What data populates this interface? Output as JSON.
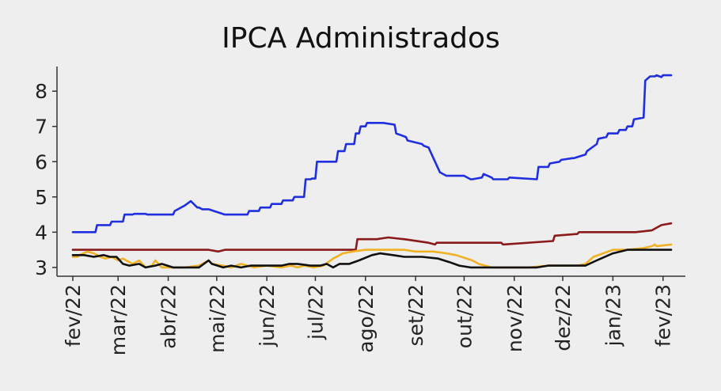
{
  "chart_data": {
    "type": "line",
    "title": "IPCA Administrados",
    "xlabel": "",
    "ylabel": "",
    "ylim": [
      2.75,
      8.7
    ],
    "yticks": [
      3,
      4,
      5,
      6,
      7,
      8
    ],
    "x_domain": [
      "2022-02-01",
      "2023-02-07"
    ],
    "x_ticks": [
      {
        "label": "fev/22",
        "date": "2022-02-01"
      },
      {
        "label": "mar/22",
        "date": "2022-03-01"
      },
      {
        "label": "abr/22",
        "date": "2022-04-01"
      },
      {
        "label": "mai/22",
        "date": "2022-05-01"
      },
      {
        "label": "jun/22",
        "date": "2022-06-01"
      },
      {
        "label": "jul/22",
        "date": "2022-07-01"
      },
      {
        "label": "ago/22",
        "date": "2022-08-01"
      },
      {
        "label": "set/22",
        "date": "2022-09-01"
      },
      {
        "label": "out/22",
        "date": "2022-10-01"
      },
      {
        "label": "nov/22",
        "date": "2022-11-01"
      },
      {
        "label": "dez/22",
        "date": "2022-12-01"
      },
      {
        "label": "jan/23",
        "date": "2023-01-01"
      },
      {
        "label": "fev/23",
        "date": "2023-02-01"
      }
    ],
    "legend": "none",
    "grid": false,
    "series": [
      {
        "color": "#1f2fe0",
        "x": [
          "2022-02-01",
          "2022-02-15",
          "2022-02-16",
          "2022-02-24",
          "2022-02-25",
          "2022-03-04",
          "2022-03-05",
          "2022-03-10",
          "2022-03-11",
          "2022-03-18",
          "2022-03-19",
          "2022-04-04",
          "2022-04-05",
          "2022-04-11",
          "2022-04-15",
          "2022-04-19",
          "2022-04-20",
          "2022-04-22",
          "2022-04-26",
          "2022-05-06",
          "2022-05-07",
          "2022-05-20",
          "2022-05-21",
          "2022-05-27",
          "2022-05-28",
          "2022-06-03",
          "2022-06-04",
          "2022-06-10",
          "2022-06-11",
          "2022-06-17",
          "2022-06-18",
          "2022-06-24",
          "2022-06-25",
          "2022-06-28",
          "2022-06-29",
          "2022-07-01",
          "2022-07-02",
          "2022-07-14",
          "2022-07-15",
          "2022-07-19",
          "2022-07-20",
          "2022-07-25",
          "2022-07-26",
          "2022-07-28",
          "2022-07-29",
          "2022-08-01",
          "2022-08-02",
          "2022-08-12",
          "2022-08-19",
          "2022-08-20",
          "2022-08-26",
          "2022-08-27",
          "2022-09-05",
          "2022-09-06",
          "2022-09-09",
          "2022-09-13",
          "2022-09-16",
          "2022-09-20",
          "2022-09-21",
          "2022-09-30",
          "2022-10-01",
          "2022-10-05",
          "2022-10-06",
          "2022-10-12",
          "2022-10-13",
          "2022-10-18",
          "2022-10-19",
          "2022-10-28",
          "2022-10-29",
          "2022-11-15",
          "2022-11-16",
          "2022-11-22",
          "2022-11-23",
          "2022-11-29",
          "2022-11-30",
          "2022-12-07",
          "2022-12-08",
          "2022-12-15",
          "2022-12-16",
          "2022-12-22",
          "2022-12-23",
          "2022-12-28",
          "2022-12-29",
          "2023-01-04",
          "2023-01-05",
          "2023-01-09",
          "2023-01-10",
          "2023-01-13",
          "2023-01-14",
          "2023-01-20",
          "2023-01-21",
          "2023-01-24",
          "2023-01-25",
          "2023-01-27",
          "2023-01-28",
          "2023-01-31",
          "2023-02-01",
          "2023-02-06"
        ],
        "values": [
          4.0,
          4.0,
          4.2,
          4.2,
          4.3,
          4.3,
          4.5,
          4.5,
          4.52,
          4.52,
          4.5,
          4.5,
          4.6,
          4.75,
          4.88,
          4.7,
          4.7,
          4.65,
          4.65,
          4.5,
          4.5,
          4.5,
          4.6,
          4.6,
          4.7,
          4.7,
          4.8,
          4.8,
          4.9,
          4.9,
          5.0,
          5.0,
          5.5,
          5.5,
          5.52,
          5.52,
          6.0,
          6.0,
          6.3,
          6.3,
          6.5,
          6.5,
          6.8,
          6.8,
          7.0,
          7.0,
          7.1,
          7.1,
          7.05,
          6.8,
          6.7,
          6.6,
          6.5,
          6.45,
          6.4,
          6.0,
          5.7,
          5.6,
          5.6,
          5.6,
          5.6,
          5.5,
          5.5,
          5.55,
          5.65,
          5.55,
          5.5,
          5.5,
          5.55,
          5.5,
          5.85,
          5.85,
          5.95,
          6.0,
          6.05,
          6.1,
          6.1,
          6.2,
          6.3,
          6.5,
          6.65,
          6.7,
          6.8,
          6.8,
          6.9,
          6.9,
          7.0,
          7.0,
          7.2,
          7.25,
          8.3,
          8.42,
          8.42,
          8.42,
          8.45,
          8.4,
          8.45,
          8.45
        ]
      },
      {
        "color": "#8b1a1a",
        "x": [
          "2022-02-01",
          "2022-04-26",
          "2022-05-02",
          "2022-05-06",
          "2022-07-26",
          "2022-07-27",
          "2022-08-08",
          "2022-08-15",
          "2022-08-25",
          "2022-09-09",
          "2022-09-13",
          "2022-09-14",
          "2022-10-01",
          "2022-10-24",
          "2022-10-25",
          "2022-11-25",
          "2022-11-26",
          "2022-12-10",
          "2022-12-11",
          "2023-01-15",
          "2023-01-25",
          "2023-01-31",
          "2023-02-06"
        ],
        "values": [
          3.5,
          3.5,
          3.45,
          3.5,
          3.5,
          3.8,
          3.8,
          3.85,
          3.8,
          3.7,
          3.65,
          3.7,
          3.7,
          3.7,
          3.65,
          3.75,
          3.9,
          3.95,
          4.0,
          4.0,
          4.05,
          4.2,
          4.25
        ]
      },
      {
        "color": "#f0b224",
        "x": [
          "2022-02-01",
          "2022-02-04",
          "2022-02-05",
          "2022-02-10",
          "2022-02-14",
          "2022-02-18",
          "2022-02-21",
          "2022-02-25",
          "2022-03-01",
          "2022-03-04",
          "2022-03-08",
          "2022-03-10",
          "2022-03-14",
          "2022-03-18",
          "2022-03-22",
          "2022-03-24",
          "2022-03-28",
          "2022-04-04",
          "2022-04-11",
          "2022-04-20",
          "2022-04-26",
          "2022-04-28",
          "2022-05-05",
          "2022-05-10",
          "2022-05-16",
          "2022-05-24",
          "2022-06-01",
          "2022-06-10",
          "2022-06-16",
          "2022-06-20",
          "2022-06-24",
          "2022-06-30",
          "2022-07-06",
          "2022-07-12",
          "2022-07-18",
          "2022-07-24",
          "2022-08-01",
          "2022-08-15",
          "2022-08-25",
          "2022-09-01",
          "2022-09-12",
          "2022-09-20",
          "2022-09-26",
          "2022-10-06",
          "2022-10-10",
          "2022-10-18",
          "2022-11-01",
          "2022-11-10",
          "2022-11-22",
          "2022-12-01",
          "2022-12-10",
          "2022-12-15",
          "2022-12-20",
          "2023-01-01",
          "2023-01-10",
          "2023-01-20",
          "2023-01-25",
          "2023-01-27",
          "2023-01-28",
          "2023-02-06"
        ],
        "values": [
          3.3,
          3.3,
          3.35,
          3.45,
          3.4,
          3.3,
          3.25,
          3.3,
          3.2,
          3.25,
          3.15,
          3.1,
          3.2,
          3.0,
          3.05,
          3.2,
          3.0,
          3.0,
          3.0,
          3.05,
          3.2,
          3.1,
          3.05,
          3.0,
          3.1,
          3.0,
          3.05,
          3.0,
          3.05,
          3.0,
          3.05,
          3.0,
          3.05,
          3.25,
          3.4,
          3.45,
          3.5,
          3.5,
          3.5,
          3.45,
          3.45,
          3.4,
          3.35,
          3.2,
          3.1,
          3.0,
          3.0,
          3.0,
          3.05,
          3.05,
          3.05,
          3.1,
          3.3,
          3.5,
          3.5,
          3.55,
          3.6,
          3.65,
          3.6,
          3.65
        ]
      },
      {
        "color": "#111111",
        "x": [
          "2022-02-01",
          "2022-02-08",
          "2022-02-14",
          "2022-02-20",
          "2022-02-24",
          "2022-02-28",
          "2022-03-04",
          "2022-03-08",
          "2022-03-14",
          "2022-03-18",
          "2022-03-24",
          "2022-03-28",
          "2022-04-04",
          "2022-04-11",
          "2022-04-20",
          "2022-04-26",
          "2022-04-28",
          "2022-05-05",
          "2022-05-10",
          "2022-05-16",
          "2022-05-22",
          "2022-06-01",
          "2022-06-10",
          "2022-06-15",
          "2022-06-20",
          "2022-06-28",
          "2022-07-04",
          "2022-07-08",
          "2022-07-12",
          "2022-07-16",
          "2022-07-22",
          "2022-07-28",
          "2022-08-05",
          "2022-08-10",
          "2022-08-18",
          "2022-08-25",
          "2022-09-05",
          "2022-09-15",
          "2022-09-22",
          "2022-09-28",
          "2022-10-05",
          "2022-11-01",
          "2022-11-15",
          "2022-11-22",
          "2022-12-01",
          "2022-12-15",
          "2022-12-22",
          "2023-01-01",
          "2023-01-10",
          "2023-01-20",
          "2023-02-06"
        ],
        "values": [
          3.35,
          3.35,
          3.3,
          3.35,
          3.3,
          3.3,
          3.1,
          3.05,
          3.1,
          3.0,
          3.05,
          3.1,
          3.0,
          3.0,
          3.0,
          3.2,
          3.1,
          3.0,
          3.05,
          3.0,
          3.05,
          3.05,
          3.05,
          3.1,
          3.1,
          3.05,
          3.05,
          3.1,
          3.0,
          3.1,
          3.1,
          3.2,
          3.35,
          3.4,
          3.35,
          3.3,
          3.3,
          3.25,
          3.15,
          3.05,
          3.0,
          3.0,
          3.0,
          3.05,
          3.05,
          3.05,
          3.2,
          3.4,
          3.5,
          3.5,
          3.5
        ]
      }
    ]
  }
}
